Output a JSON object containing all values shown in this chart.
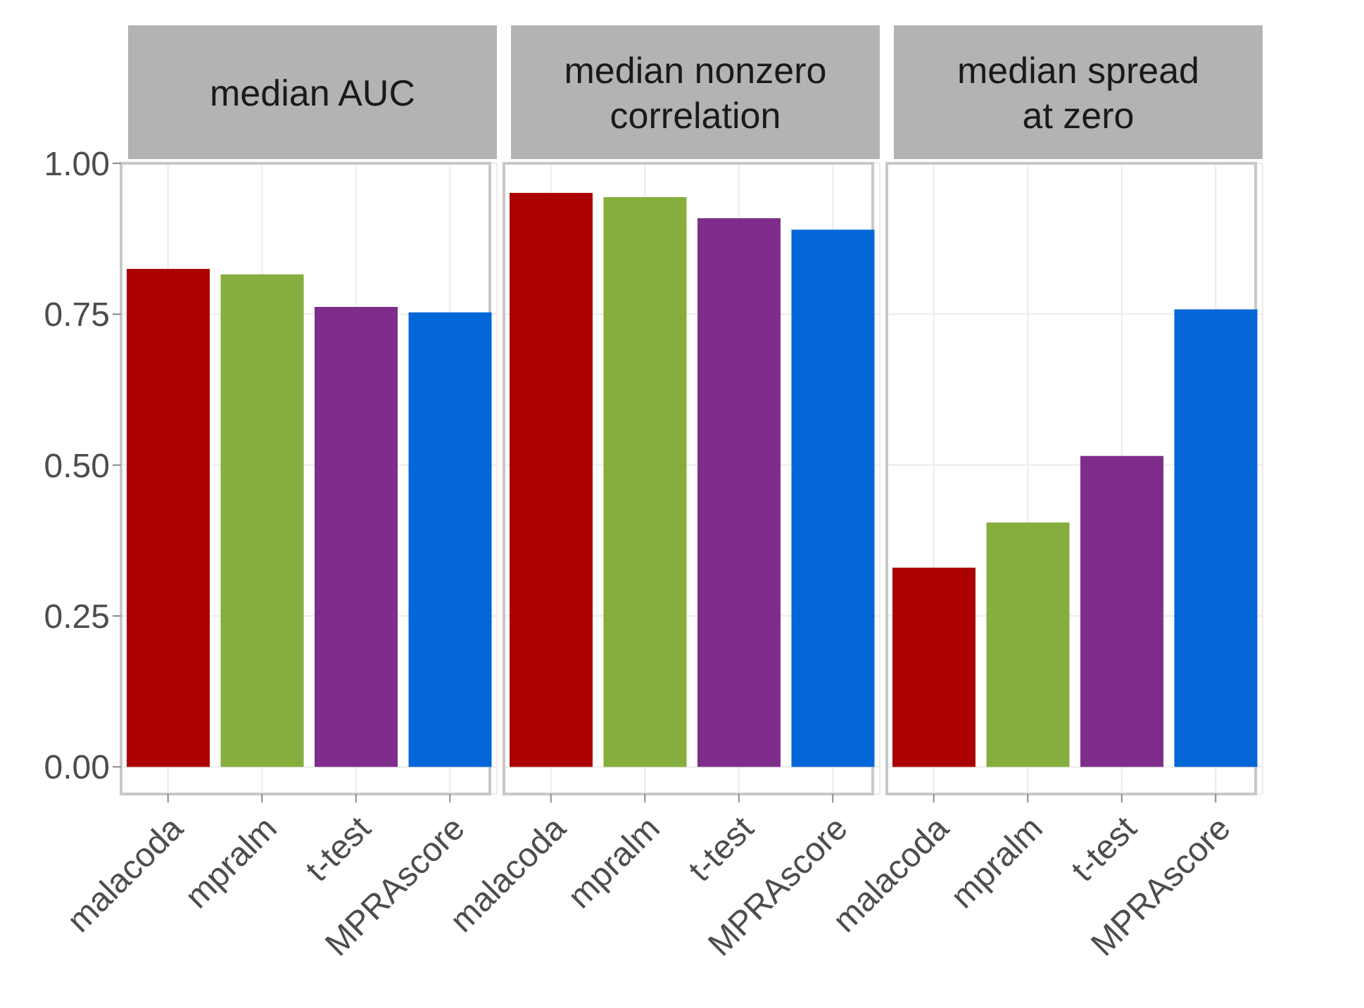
{
  "chart_data": [
    {
      "type": "bar",
      "title": "median AUC",
      "categories": [
        "malacoda",
        "mpralm",
        "t-test",
        "MPRAscore"
      ],
      "values": [
        0.825,
        0.816,
        0.762,
        0.753
      ],
      "colors": [
        "#aa0000",
        "#86ae3e",
        "#7e2d8a",
        "#0566d8"
      ],
      "ylim": [
        -0.045,
        1.0
      ],
      "yticks": [
        {
          "value": 0,
          "label": "0.00"
        },
        0.25,
        {
          "value": 0.5,
          "label": "0.50"
        },
        0.75,
        {
          "value": 1,
          "label": "1.00"
        }
      ],
      "grid": true
    },
    {
      "type": "bar",
      "title": "median nonzero\ncorrelation",
      "categories": [
        "malacoda",
        "mpralm",
        "t-test",
        "MPRAscore"
      ],
      "values": [
        0.951,
        0.944,
        0.909,
        0.89
      ],
      "colors": [
        "#aa0000",
        "#86ae3e",
        "#7e2d8a",
        "#0566d8"
      ],
      "ylim": [
        -0.045,
        1.0
      ],
      "yticks": [
        0,
        0.25,
        0.5,
        0.75,
        1
      ],
      "grid": true,
      "tick_labels": "x"
    },
    {
      "type": "bar",
      "title": "median spread\nat zero",
      "categories": [
        "malacoda",
        "mpralm",
        "t-test",
        "MPRAscore"
      ],
      "values": [
        0.33,
        0.405,
        0.515,
        0.758
      ],
      "colors": [
        "#aa0000",
        "#86ae3e",
        "#7e2d8a",
        "#0566d8"
      ],
      "ylim": [
        -0.045,
        1.0
      ],
      "yticks": [
        0,
        0.25,
        0.5,
        0.75,
        1
      ],
      "grid": true,
      "tick_labels": "x"
    }
  ]
}
